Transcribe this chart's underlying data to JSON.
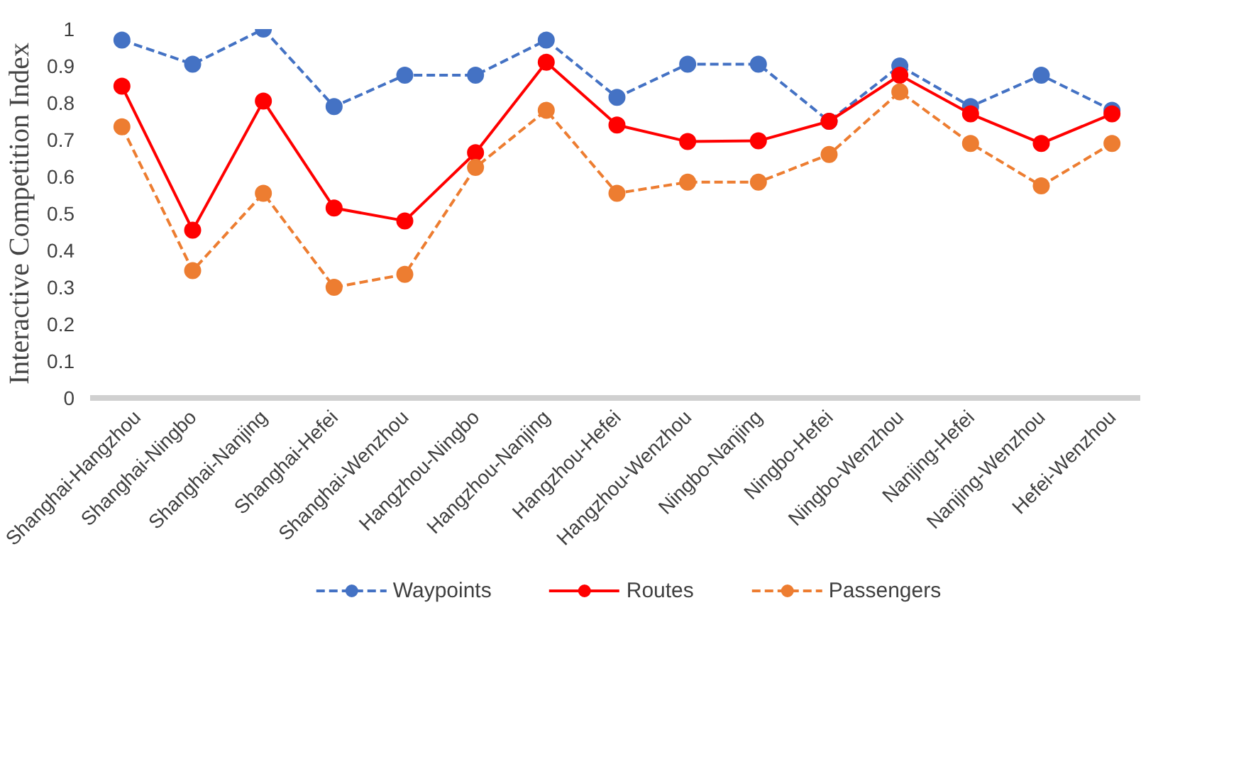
{
  "chart_data": {
    "type": "line",
    "ylabel": "Interactive Competition Index",
    "categories": [
      "Shanghai-Hangzhou",
      "Shanghai-Ningbo",
      "Shanghai-Nanjing",
      "Shanghai-Hefei",
      "Shanghai-Wenzhou",
      "Hangzhou-Ningbo",
      "Hangzhou-Nanjing",
      "Hangzhou-Hefei",
      "Hangzhou-Wenzhou",
      "Ningbo-Nanjing",
      "Ningbo-Hefei",
      "Ningbo-Wenzhou",
      "Nanjing-Hefei",
      "Nanjing-Wenzhou",
      "Hefei-Wenzhou"
    ],
    "series": [
      {
        "name": "Waypoints",
        "color": "#4472c4",
        "line_style": "dashed",
        "values": [
          0.97,
          0.905,
          1.0,
          0.79,
          0.875,
          0.875,
          0.97,
          0.815,
          0.905,
          0.905,
          0.75,
          0.9,
          0.79,
          0.875,
          0.78
        ]
      },
      {
        "name": "Routes",
        "color": "#ff0000",
        "line_style": "solid",
        "values": [
          0.845,
          0.455,
          0.805,
          0.515,
          0.48,
          0.665,
          0.91,
          0.74,
          0.695,
          0.697,
          0.75,
          0.875,
          0.77,
          0.69,
          0.77
        ]
      },
      {
        "name": "Passengers",
        "color": "#ed7d31",
        "line_style": "dashed",
        "values": [
          0.735,
          0.345,
          0.555,
          0.3,
          0.335,
          0.625,
          0.78,
          0.555,
          0.585,
          0.585,
          0.66,
          0.83,
          0.69,
          0.575,
          0.69
        ]
      }
    ],
    "ylim": [
      0,
      1
    ],
    "yticks": [
      0,
      0.1,
      0.2,
      0.3,
      0.4,
      0.5,
      0.6,
      0.7,
      0.8,
      0.9,
      1
    ],
    "grid": false,
    "legend": "bottom",
    "marker": "circle"
  }
}
